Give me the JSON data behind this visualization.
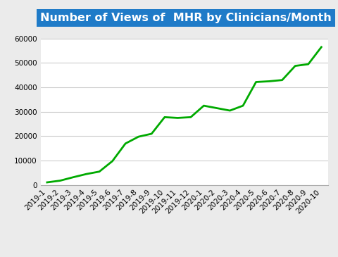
{
  "title": "Number of Views of  MHR by Clinicians/Month",
  "title_bg_color": "#1F7BC8",
  "title_text_color": "#FFFFFF",
  "line_color": "#00AA00",
  "line_width": 2.0,
  "background_color": "#EBEBEB",
  "plot_bg_color": "#FFFFFF",
  "x_labels": [
    "2019-1",
    "2019-2",
    "2019-3",
    "2019-4",
    "2019-5",
    "2019-6",
    "2019-7",
    "2019-8",
    "2019-9",
    "2019-10",
    "2019-11",
    "2019-12",
    "2020-1",
    "2020-2",
    "2020-3",
    "2020-4",
    "2020-5",
    "2020-6",
    "2020-7",
    "2020-8",
    "2020-9",
    "2020-10"
  ],
  "y_values": [
    1100,
    1800,
    3200,
    4500,
    5500,
    9800,
    17000,
    19800,
    21000,
    27800,
    27500,
    27800,
    32500,
    31500,
    30500,
    32500,
    42200,
    42500,
    43000,
    48800,
    49500,
    56500
  ],
  "ylim": [
    0,
    60000
  ],
  "yticks": [
    0,
    10000,
    20000,
    30000,
    40000,
    50000,
    60000
  ],
  "grid_color": "#CCCCCC",
  "tick_fontsize": 7.5,
  "title_fontsize": 11.5
}
